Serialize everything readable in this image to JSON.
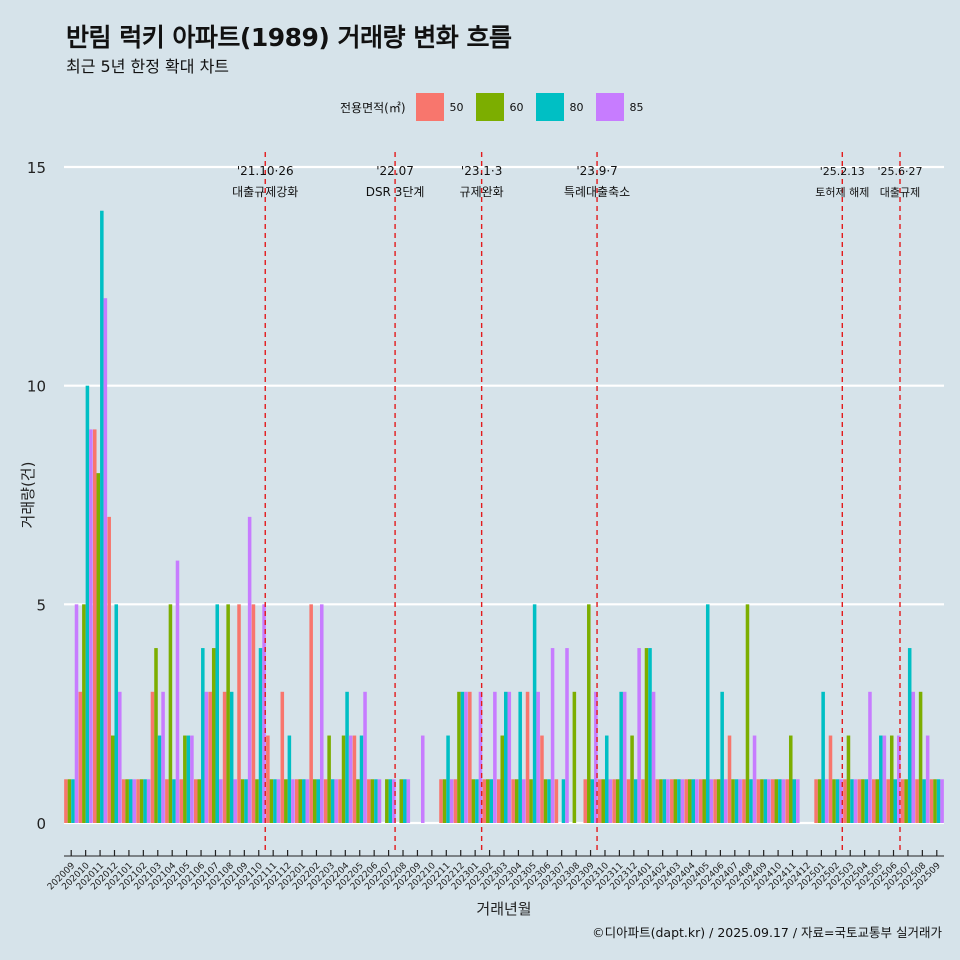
{
  "title": "반림 럭키 아파트(1989) 거래량 변화 흐름",
  "subtitle": "최근 5년 한정 확대 차트",
  "credit": "©디아파트(dapt.kr) / 2025.09.17 / 자료=국토교통부 실거래가",
  "legend": {
    "title": "전용면적(㎡)",
    "items": [
      {
        "label": "50",
        "color": "#F8766D"
      },
      {
        "label": "60",
        "color": "#7CAE00"
      },
      {
        "label": "80",
        "color": "#00BFC4"
      },
      {
        "label": "85",
        "color": "#C77CFF"
      }
    ]
  },
  "chart_data": {
    "type": "bar",
    "title": "반림 럭키 아파트(1989) 거래량 변화 흐름",
    "xlabel": "거래년월",
    "ylabel": "거래량(건)",
    "ylim": [
      0,
      15
    ],
    "yticks": [
      0,
      5,
      10,
      15
    ],
    "categories": [
      "202009",
      "202010",
      "202011",
      "202012",
      "202101",
      "202102",
      "202103",
      "202104",
      "202105",
      "202106",
      "202107",
      "202108",
      "202109",
      "202110",
      "202111",
      "202112",
      "202201",
      "202202",
      "202203",
      "202204",
      "202205",
      "202206",
      "202207",
      "202208",
      "202209",
      "202210",
      "202211",
      "202212",
      "202301",
      "202302",
      "202303",
      "202304",
      "202305",
      "202306",
      "202307",
      "202308",
      "202309",
      "202310",
      "202311",
      "202312",
      "202401",
      "202402",
      "202403",
      "202404",
      "202405",
      "202406",
      "202407",
      "202408",
      "202409",
      "202410",
      "202411",
      "202412",
      "202501",
      "202502",
      "202503",
      "202504",
      "202505",
      "202506",
      "202507",
      "202508",
      "202509"
    ],
    "tick_labels_shown": [
      "202009",
      "202010",
      "202011",
      "202012",
      "202101",
      "202102",
      "202103",
      "202104",
      "202105",
      "202106",
      "202107",
      "202108",
      "202109",
      "202110",
      "202111",
      "202112",
      "202201",
      "202202",
      "202203",
      "202204",
      "202205",
      "202206",
      "202207",
      "202208",
      "202209",
      "202210",
      "202211",
      "202212",
      "202301",
      "202302",
      "202303",
      "202304",
      "202305",
      "202306",
      "202307",
      "202308",
      "202309",
      "202310",
      "202311",
      "202312",
      "202401",
      "202402",
      "202403",
      "202404",
      "202405",
      "202406",
      "202407",
      "202408",
      "202409",
      "202410",
      "202411",
      "202412",
      "202501",
      "202502",
      "202503",
      "202504",
      "202505",
      "202506",
      "202507",
      "202508",
      "202509"
    ],
    "series": [
      {
        "name": "50",
        "values": [
          1,
          3,
          9,
          7,
          1,
          1,
          3,
          1,
          1,
          1,
          3,
          3,
          5,
          5,
          2,
          3,
          1,
          5,
          1,
          1,
          2,
          1,
          0,
          0,
          0,
          0,
          1,
          1,
          3,
          1,
          1,
          1,
          3,
          2,
          1,
          0,
          1,
          1,
          1,
          1,
          1,
          1,
          1,
          1,
          1,
          1,
          2,
          1,
          1,
          1,
          1,
          0,
          1,
          2,
          1,
          1,
          1,
          1,
          1,
          1,
          1
        ]
      },
      {
        "name": "60",
        "values": [
          1,
          5,
          8,
          2,
          1,
          1,
          4,
          5,
          2,
          1,
          4,
          5,
          1,
          1,
          1,
          1,
          1,
          1,
          2,
          2,
          1,
          1,
          1,
          1,
          0,
          0,
          1,
          3,
          1,
          1,
          2,
          1,
          1,
          1,
          0,
          3,
          5,
          1,
          1,
          2,
          4,
          1,
          1,
          1,
          1,
          1,
          1,
          5,
          1,
          1,
          2,
          0,
          1,
          1,
          2,
          1,
          1,
          2,
          1,
          3,
          1
        ]
      },
      {
        "name": "80",
        "values": [
          1,
          10,
          14,
          5,
          1,
          1,
          2,
          1,
          2,
          4,
          5,
          3,
          1,
          4,
          1,
          2,
          1,
          1,
          1,
          3,
          2,
          1,
          1,
          1,
          0,
          0,
          2,
          3,
          1,
          1,
          3,
          3,
          5,
          1,
          1,
          0,
          1,
          2,
          3,
          1,
          4,
          1,
          1,
          1,
          5,
          3,
          1,
          1,
          1,
          1,
          1,
          0,
          3,
          1,
          1,
          1,
          2,
          1,
          4,
          1,
          1
        ]
      },
      {
        "name": "85",
        "values": [
          5,
          9,
          12,
          3,
          1,
          1,
          3,
          6,
          2,
          3,
          1,
          1,
          7,
          5,
          1,
          1,
          1,
          5,
          1,
          2,
          3,
          1,
          1,
          1,
          2,
          0,
          1,
          3,
          3,
          3,
          3,
          1,
          3,
          4,
          4,
          0,
          3,
          1,
          3,
          4,
          3,
          1,
          1,
          1,
          1,
          1,
          1,
          2,
          1,
          1,
          1,
          0,
          1,
          1,
          1,
          3,
          2,
          2,
          3,
          2,
          1
        ]
      }
    ],
    "annotations": [
      {
        "x": "202110",
        "line1": "'21.10·26",
        "line2": "대출규제강화",
        "style": "dashed"
      },
      {
        "x": "202207",
        "line1": "'22.07",
        "line2": "DSR 3단계",
        "style": "dashed"
      },
      {
        "x": "202301",
        "line1": "'23.1·3",
        "line2": "규제완화",
        "style": "dashed"
      },
      {
        "x": "202309",
        "line1": "'23.9·7",
        "line2": "특례대출축소",
        "style": "dashed"
      },
      {
        "x": "202502",
        "line1": "'25.2.13",
        "line2": "토허제 해제",
        "style": "dashed"
      },
      {
        "x": "202506",
        "line1": "'25.6·27",
        "line2": "대출규제",
        "style": "dashed"
      }
    ]
  }
}
